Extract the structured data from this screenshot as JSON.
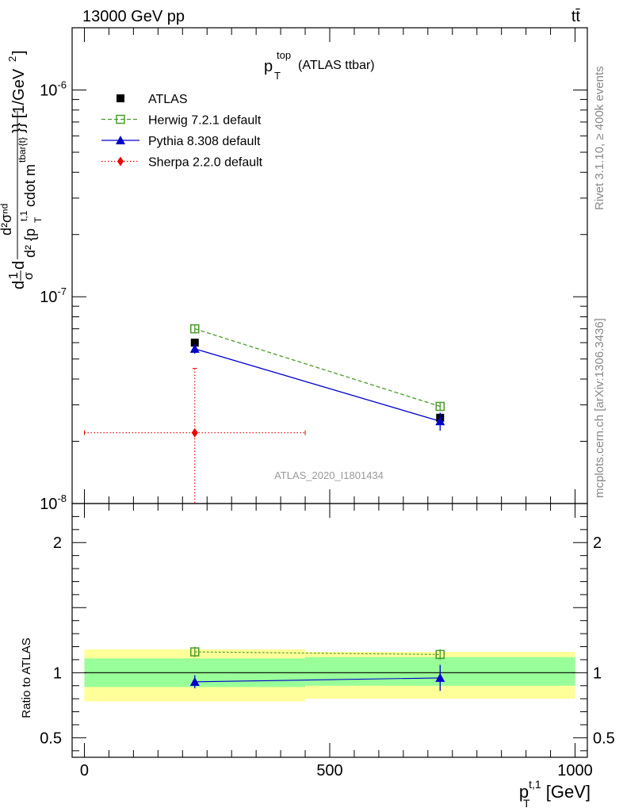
{
  "header": {
    "left": "13000 GeV pp",
    "right": "tt̄"
  },
  "side": {
    "top": "Rivet 3.1.10, ≥ 400k events",
    "bottom": "mcplots.cern.ch [arXiv:1306.3436]"
  },
  "chart_data": {
    "type": "scatter",
    "title": "p_T^top (ATLAS ttbar)",
    "watermark": "ATLAS_2020_I1801434",
    "xlabel": "p_T^{t,1} [GeV]",
    "ylabel": "d1/σ dσ^{nd}/d^2{p_T^{t,1} cdot m^{tbar{t}}} [1/GeV^2]",
    "ratio_ylabel": "Ratio to ATLAS",
    "x_range": [
      -25,
      1025
    ],
    "ylim": [
      1e-08,
      2e-06
    ],
    "yscale": "log",
    "ratio_ylim": [
      0.35,
      2.3
    ],
    "x_ticks": [
      "0",
      "500",
      "1000"
    ],
    "y_ticks": [
      "10^-8",
      "10^-7",
      "10^-6"
    ],
    "ratio_ticks": [
      "0.5",
      "1",
      "2"
    ],
    "bins": [
      [
        0,
        450
      ],
      [
        450,
        1000
      ]
    ],
    "x": [
      225,
      725
    ],
    "series": [
      {
        "name": "ATLAS",
        "color": "#000000",
        "marker": "square-filled",
        "values": [
          6e-08,
          2.6e-08
        ],
        "ratio": [
          1.0,
          1.0
        ]
      },
      {
        "name": "Herwig 7.2.1 default",
        "color": "#4a9a2a",
        "marker": "square-open",
        "line": "dashed",
        "values": [
          7e-08,
          2.95e-08
        ],
        "errors": [
          3e-09,
          1.5e-09
        ],
        "ratio": [
          1.16,
          1.14
        ],
        "ratio_errors": [
          0.04,
          0.04
        ]
      },
      {
        "name": "Pythia 8.308 default",
        "color": "#0000cc",
        "marker": "triangle",
        "line": "solid",
        "values": [
          5.6e-08,
          2.5e-08
        ],
        "errors": [
          3e-09,
          2.5e-09
        ],
        "ratio": [
          0.93,
          0.96
        ],
        "ratio_errors": [
          0.05,
          0.1
        ]
      },
      {
        "name": "Sherpa 2.2.0 default",
        "color": "#ee0000",
        "marker": "diamond",
        "line": "dotted",
        "x": [
          225
        ],
        "values": [
          2.2e-08
        ],
        "errors_low": [
          2.2e-08
        ],
        "errors_high": [
          2.3e-08
        ],
        "xerr": [
          [
            0,
            450
          ]
        ]
      }
    ],
    "ratio_bands": [
      {
        "range": [
          0,
          450
        ],
        "inner": [
          0.89,
          1.11
        ],
        "outer": [
          0.78,
          1.18
        ]
      },
      {
        "range": [
          450,
          1000
        ],
        "inner": [
          0.9,
          1.12
        ],
        "outer": [
          0.8,
          1.16
        ]
      }
    ],
    "band_colors": {
      "inner": "#99ff99",
      "outer": "#ffff99"
    }
  }
}
